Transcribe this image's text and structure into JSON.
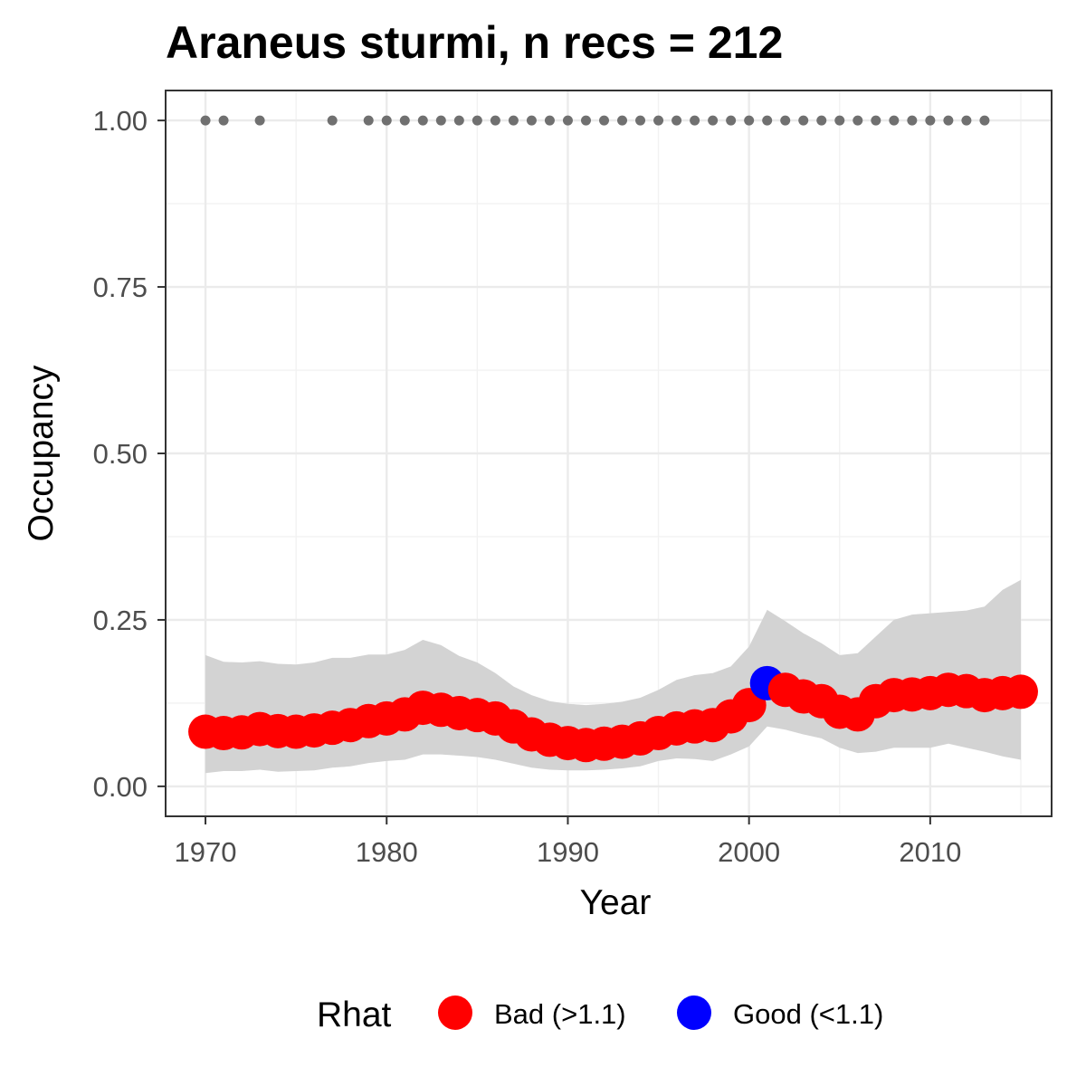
{
  "chart_data": {
    "type": "line",
    "title": "Araneus sturmi, n recs = 212",
    "xlabel": "Year",
    "ylabel": "Occupancy",
    "xlim": [
      1967.8,
      2016.7
    ],
    "ylim": [
      -0.045,
      1.045
    ],
    "x_ticks": [
      1970,
      1980,
      1990,
      2000,
      2010
    ],
    "x_tick_labels": [
      "1970",
      "1980",
      "1990",
      "2000",
      "2010"
    ],
    "y_ticks": [
      0,
      0.25,
      0.5,
      0.75,
      1.0
    ],
    "y_tick_labels": [
      "0.00",
      "0.25",
      "0.50",
      "0.75",
      "1.00"
    ],
    "grid": true,
    "legend": {
      "title": "Rhat",
      "position": "bottom",
      "entries": [
        {
          "label": "Bad (>1.1)",
          "color": "#ff0000"
        },
        {
          "label": "Good (<1.1)",
          "color": "#0000ff"
        }
      ]
    },
    "colors": {
      "bad": "#ff0000",
      "good": "#0000ff",
      "ribbon": "#d3d3d3",
      "record": "#707070"
    },
    "series": [
      {
        "name": "Occupancy estimate",
        "x": [
          1970,
          1971,
          1972,
          1973,
          1974,
          1975,
          1976,
          1977,
          1978,
          1979,
          1980,
          1981,
          1982,
          1983,
          1984,
          1985,
          1986,
          1987,
          1988,
          1989,
          1990,
          1991,
          1992,
          1993,
          1994,
          1995,
          1996,
          1997,
          1998,
          1999,
          2000,
          2001,
          2002,
          2003,
          2004,
          2005,
          2006,
          2007,
          2008,
          2009,
          2010,
          2011,
          2012,
          2013,
          2014,
          2015
        ],
        "y": [
          0.082,
          0.08,
          0.081,
          0.086,
          0.083,
          0.082,
          0.084,
          0.088,
          0.092,
          0.098,
          0.102,
          0.108,
          0.118,
          0.115,
          0.11,
          0.107,
          0.102,
          0.09,
          0.078,
          0.07,
          0.065,
          0.062,
          0.064,
          0.067,
          0.072,
          0.08,
          0.087,
          0.09,
          0.092,
          0.105,
          0.122,
          0.155,
          0.145,
          0.135,
          0.128,
          0.112,
          0.108,
          0.128,
          0.137,
          0.138,
          0.14,
          0.145,
          0.143,
          0.137,
          0.14,
          0.142
        ],
        "lower": [
          0.02,
          0.023,
          0.023,
          0.025,
          0.022,
          0.023,
          0.024,
          0.028,
          0.03,
          0.035,
          0.038,
          0.04,
          0.048,
          0.048,
          0.046,
          0.044,
          0.04,
          0.034,
          0.028,
          0.025,
          0.024,
          0.024,
          0.025,
          0.027,
          0.03,
          0.038,
          0.042,
          0.041,
          0.038,
          0.048,
          0.06,
          0.09,
          0.085,
          0.078,
          0.072,
          0.058,
          0.05,
          0.052,
          0.058,
          0.058,
          0.058,
          0.064,
          0.058,
          0.052,
          0.045,
          0.04
        ],
        "upper": [
          0.197,
          0.187,
          0.186,
          0.188,
          0.184,
          0.183,
          0.186,
          0.193,
          0.193,
          0.198,
          0.198,
          0.205,
          0.22,
          0.212,
          0.196,
          0.186,
          0.17,
          0.15,
          0.137,
          0.128,
          0.124,
          0.122,
          0.124,
          0.127,
          0.133,
          0.145,
          0.16,
          0.167,
          0.17,
          0.18,
          0.21,
          0.265,
          0.248,
          0.23,
          0.215,
          0.197,
          0.2,
          0.225,
          0.25,
          0.258,
          0.26,
          0.262,
          0.264,
          0.27,
          0.295,
          0.31
        ],
        "rhat": [
          "bad",
          "bad",
          "bad",
          "bad",
          "bad",
          "bad",
          "bad",
          "bad",
          "bad",
          "bad",
          "bad",
          "bad",
          "bad",
          "bad",
          "bad",
          "bad",
          "bad",
          "bad",
          "bad",
          "bad",
          "bad",
          "bad",
          "bad",
          "bad",
          "bad",
          "bad",
          "bad",
          "bad",
          "bad",
          "bad",
          "bad",
          "good",
          "bad",
          "bad",
          "bad",
          "bad",
          "bad",
          "bad",
          "bad",
          "bad",
          "bad",
          "bad",
          "bad",
          "bad",
          "bad",
          "bad"
        ]
      },
      {
        "name": "Records",
        "x": [
          1970,
          1971,
          1973,
          1977,
          1979,
          1980,
          1981,
          1982,
          1983,
          1984,
          1985,
          1986,
          1987,
          1988,
          1989,
          1990,
          1991,
          1992,
          1993,
          1994,
          1995,
          1996,
          1997,
          1998,
          1999,
          2000,
          2001,
          2002,
          2003,
          2004,
          2005,
          2006,
          2007,
          2008,
          2009,
          2010,
          2011,
          2012,
          2013
        ],
        "y": [
          1,
          1,
          1,
          1,
          1,
          1,
          1,
          1,
          1,
          1,
          1,
          1,
          1,
          1,
          1,
          1,
          1,
          1,
          1,
          1,
          1,
          1,
          1,
          1,
          1,
          1,
          1,
          1,
          1,
          1,
          1,
          1,
          1,
          1,
          1,
          1,
          1,
          1,
          1
        ]
      }
    ]
  }
}
